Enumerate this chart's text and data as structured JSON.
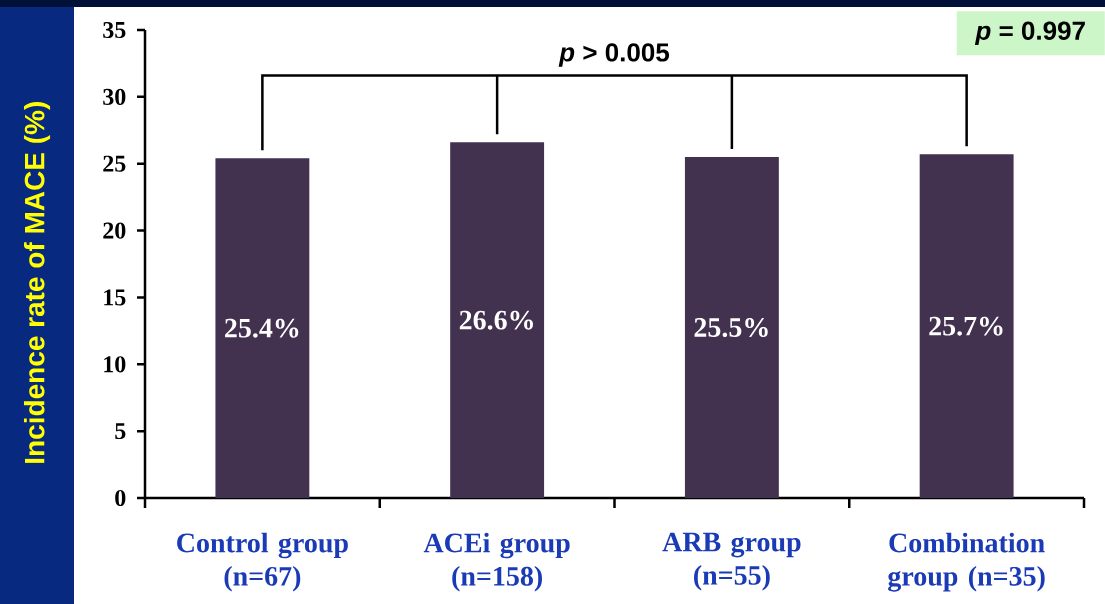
{
  "chart_data": {
    "type": "bar",
    "ylabel": "Incidence rate of MACE (%)",
    "categories": [
      "Control group (n=67)",
      "ACEi group (n=158)",
      "ARB group (n=55)",
      "Combination group (n=35)"
    ],
    "values": [
      25.4,
      26.6,
      25.5,
      25.7
    ],
    "color": "#42314f",
    "value_labels": [
      "25.4%",
      "26.6%",
      "25.5%",
      "25.7%"
    ],
    "ylim": [
      0,
      35
    ],
    "yticks": [
      0,
      5,
      10,
      15,
      20,
      25,
      30,
      35
    ],
    "annotations": [
      "*p* > 0.005",
      "*p* = 0.997"
    ]
  }
}
